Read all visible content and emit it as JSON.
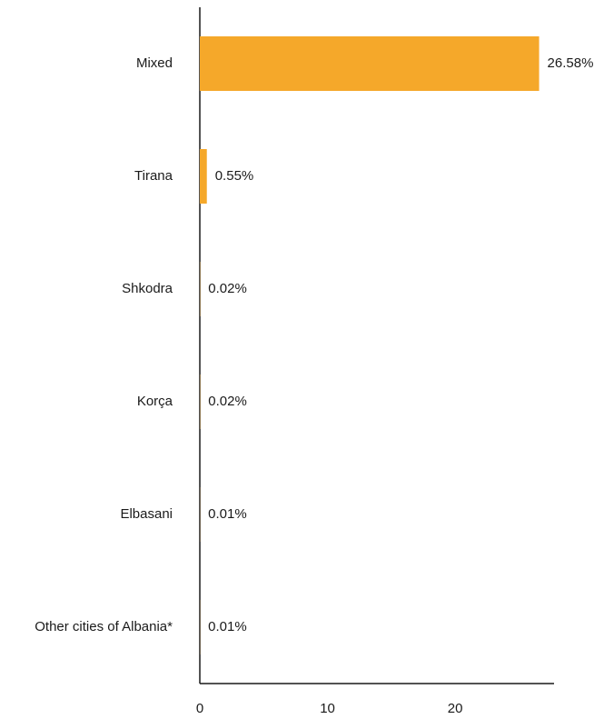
{
  "chart_data": {
    "type": "bar",
    "orientation": "horizontal",
    "categories": [
      "Mixed",
      "Tirana",
      "Shkodra",
      "Korça",
      "Elbasani",
      "Other cities of Albania*"
    ],
    "values": [
      26.58,
      0.55,
      0.02,
      0.02,
      0.01,
      0.01
    ],
    "value_labels": [
      "26.58%",
      "0.55%",
      "0.02%",
      "0.02%",
      "0.01%",
      "0.01%"
    ],
    "color": "#f5a82a",
    "xlim": [
      0,
      27.75
    ],
    "xticks": [
      0,
      10,
      20
    ],
    "grid": false
  }
}
